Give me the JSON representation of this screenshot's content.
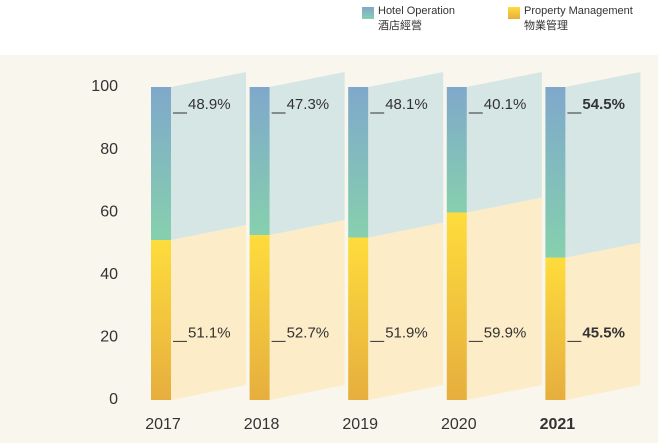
{
  "chart_data": {
    "type": "stacked_bar",
    "categories": [
      "2017",
      "2018",
      "2019",
      "2020",
      "2021"
    ],
    "series": [
      {
        "name": "Hotel Operation",
        "name_zh": "酒店經營",
        "color": [
          "#7fa8cb",
          "#86d0ae"
        ],
        "side_color": "#d6e6e5",
        "values": [
          48.9,
          47.3,
          48.1,
          40.1,
          54.5
        ],
        "value_labels": [
          "48.9%",
          "47.3%",
          "48.1%",
          "40.1%",
          "54.5%"
        ]
      },
      {
        "name": "Property Management",
        "name_zh": "物業管理",
        "color": [
          "#fedc3c",
          "#e6ae3e"
        ],
        "side_color": "#fcecc8",
        "values": [
          51.1,
          52.7,
          51.9,
          59.9,
          45.5
        ],
        "value_labels": [
          "51.1%",
          "52.7%",
          "51.9%",
          "59.9%",
          "45.5%"
        ]
      }
    ],
    "ylim": [
      0,
      100
    ],
    "yticks": [
      0,
      20,
      40,
      60,
      80,
      100
    ]
  }
}
